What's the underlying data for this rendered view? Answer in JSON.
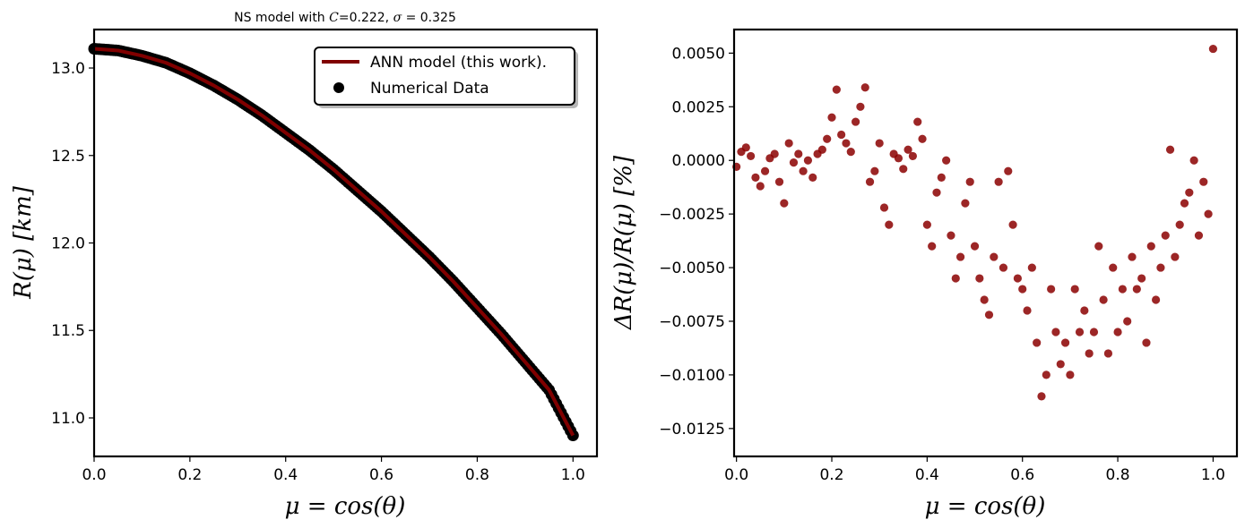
{
  "chart_data": [
    {
      "type": "line",
      "title_prefix": "NS model with ",
      "title_var": "C",
      "title_mid": "=0.222, ",
      "title_sigma": "σ",
      "title_suffix": " = 0.325",
      "xlabel": "μ = cos(θ)",
      "ylabel": "R(μ) [km]",
      "xlim": [
        0.0,
        1.05
      ],
      "ylim": [
        10.78,
        13.22
      ],
      "xticks": [
        "0.0",
        "0.2",
        "0.4",
        "0.6",
        "0.8",
        "1.0"
      ],
      "yticks": [
        "11.0",
        "11.5",
        "12.0",
        "12.5",
        "13.0"
      ],
      "legend_position": "upper right",
      "series": [
        {
          "name": "ANN model (this work).",
          "type": "line",
          "color": "#800000",
          "x": [
            0.0,
            0.05,
            0.1,
            0.15,
            0.2,
            0.25,
            0.3,
            0.35,
            0.4,
            0.45,
            0.5,
            0.55,
            0.6,
            0.65,
            0.7,
            0.75,
            0.8,
            0.85,
            0.9,
            0.95,
            1.0
          ],
          "y": [
            13.11,
            13.1,
            13.07,
            13.03,
            12.97,
            12.9,
            12.82,
            12.73,
            12.63,
            12.53,
            12.42,
            12.3,
            12.18,
            12.05,
            11.92,
            11.78,
            11.63,
            11.48,
            11.32,
            11.16,
            10.9
          ]
        },
        {
          "name": "Numerical Data",
          "type": "scatter",
          "color": "#000000"
        }
      ]
    },
    {
      "type": "scatter",
      "xlabel": "μ = cos(θ)",
      "ylabel": "ΔR(μ)/R(μ) [%]",
      "xlim": [
        -0.005,
        1.05
      ],
      "ylim": [
        -0.0138,
        0.0061
      ],
      "xticks": [
        "0.0",
        "0.2",
        "0.4",
        "0.6",
        "0.8",
        "1.0"
      ],
      "yticks": [
        "0.0050",
        "0.0025",
        "0.0000",
        "−0.0025",
        "−0.0050",
        "−0.0075",
        "−0.0100",
        "−0.0125"
      ],
      "color": "#8b0000",
      "x": [
        0.0,
        0.01,
        0.02,
        0.03,
        0.04,
        0.05,
        0.06,
        0.07,
        0.08,
        0.09,
        0.1,
        0.11,
        0.12,
        0.13,
        0.14,
        0.15,
        0.16,
        0.17,
        0.18,
        0.19,
        0.2,
        0.21,
        0.22,
        0.23,
        0.24,
        0.25,
        0.26,
        0.27,
        0.28,
        0.29,
        0.3,
        0.31,
        0.32,
        0.33,
        0.34,
        0.35,
        0.36,
        0.37,
        0.38,
        0.39,
        0.4,
        0.41,
        0.42,
        0.43,
        0.44,
        0.45,
        0.46,
        0.47,
        0.48,
        0.49,
        0.5,
        0.51,
        0.52,
        0.53,
        0.54,
        0.55,
        0.56,
        0.57,
        0.58,
        0.59,
        0.6,
        0.61,
        0.62,
        0.63,
        0.64,
        0.65,
        0.66,
        0.67,
        0.68,
        0.69,
        0.7,
        0.71,
        0.72,
        0.73,
        0.74,
        0.75,
        0.76,
        0.77,
        0.78,
        0.79,
        0.8,
        0.81,
        0.82,
        0.83,
        0.84,
        0.85,
        0.86,
        0.87,
        0.88,
        0.89,
        0.9,
        0.91,
        0.92,
        0.93,
        0.94,
        0.95,
        0.96,
        0.97,
        0.98,
        0.99,
        1.0
      ],
      "y": [
        -0.0003,
        0.0004,
        0.0006,
        0.0002,
        -0.0008,
        -0.0012,
        -0.0005,
        0.0001,
        0.0003,
        -0.001,
        -0.002,
        0.0008,
        -0.0001,
        0.0003,
        -0.0005,
        0.0,
        -0.0008,
        0.0003,
        0.0005,
        0.001,
        0.002,
        0.0033,
        0.0012,
        0.0008,
        0.0004,
        0.0018,
        0.0025,
        0.0034,
        -0.001,
        -0.0005,
        0.0008,
        -0.0022,
        -0.003,
        0.0003,
        0.0001,
        -0.0004,
        0.0005,
        0.0002,
        0.0018,
        0.001,
        -0.003,
        -0.004,
        -0.0015,
        -0.0008,
        0.0,
        -0.0035,
        -0.0055,
        -0.0045,
        -0.002,
        -0.001,
        -0.004,
        -0.0055,
        -0.0065,
        -0.0072,
        -0.0045,
        -0.001,
        -0.005,
        -0.0005,
        -0.003,
        -0.0055,
        -0.006,
        -0.007,
        -0.005,
        -0.0085,
        -0.011,
        -0.01,
        -0.006,
        -0.008,
        -0.0095,
        -0.0085,
        -0.01,
        -0.006,
        -0.008,
        -0.007,
        -0.009,
        -0.008,
        -0.004,
        -0.0065,
        -0.009,
        -0.005,
        -0.008,
        -0.006,
        -0.0075,
        -0.0045,
        -0.006,
        -0.0055,
        -0.0085,
        -0.004,
        -0.0065,
        -0.005,
        -0.0035,
        0.0005,
        -0.0045,
        -0.003,
        -0.002,
        -0.0015,
        0.0,
        -0.0035,
        -0.001,
        -0.0025,
        0.0052
      ]
    }
  ]
}
